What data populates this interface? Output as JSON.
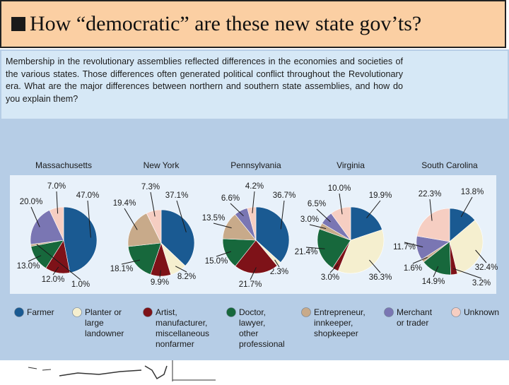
{
  "slide": {
    "title": "How “democratic” are these new state gov’ts?"
  },
  "figure": {
    "question": "Membership in the revolutionary assemblies reflected differences in the economies and societies of the various states. Those differences often generated political conflict throughout the Revolutionary era. What are the major differences between northern and southern state assemblies, and how do you explain them?"
  },
  "chart_data": {
    "type": "pie",
    "categories": [
      "Farmer",
      "Planter or large landowner",
      "Artist, manufacturer, miscellaneous nonfarmer",
      "Doctor, lawyer, other professional",
      "Entrepreneur, innkeeper, shopkeeper",
      "Merchant or trader",
      "Unknown"
    ],
    "colors": [
      "#1a5a92",
      "#f5efcf",
      "#7e1218",
      "#17683c",
      "#c8aa8a",
      "#7a76b3",
      "#f6cec2"
    ],
    "legend_lines": [
      [
        "Farmer"
      ],
      [
        "Planter or",
        "large",
        "landowner"
      ],
      [
        "Artist,",
        "manufacturer,",
        "miscellaneous",
        "nonfarmer"
      ],
      [
        "Doctor,",
        "lawyer,",
        "other",
        "professional"
      ],
      [
        "Entrepreneur,",
        "innkeeper,",
        "shopkeeper"
      ],
      [
        "Merchant",
        "or trader"
      ],
      [
        "Unknown"
      ]
    ],
    "series": [
      {
        "name": "Massachusetts",
        "values": [
          47.0,
          0,
          12.0,
          13.0,
          1.0,
          20.0,
          7.0
        ],
        "labels": [
          "47.0%",
          "",
          "12.0%",
          "13.0%",
          "1.0%",
          "20.0%",
          "7.0%"
        ]
      },
      {
        "name": "New York",
        "values": [
          37.1,
          8.2,
          9.9,
          18.1,
          19.4,
          0,
          7.3
        ],
        "labels": [
          "37.1%",
          "8.2%",
          "9.9%",
          "18.1%",
          "19.4%",
          "",
          "7.3%"
        ]
      },
      {
        "name": "Pennsylvania",
        "values": [
          36.7,
          2.3,
          21.7,
          15.0,
          13.5,
          6.6,
          4.2
        ],
        "labels": [
          "36.7%",
          "2.3%",
          "21.7%",
          "15.0%",
          "13.5%",
          "6.6%",
          "4.2%"
        ]
      },
      {
        "name": "Virginia",
        "values": [
          19.9,
          36.3,
          3.0,
          21.4,
          3.0,
          6.5,
          10.0
        ],
        "labels": [
          "19.9%",
          "36.3%",
          "3.0%",
          "21.4%",
          "3.0%",
          "6.5%",
          "10.0%"
        ]
      },
      {
        "name": "South Carolina",
        "values": [
          13.8,
          32.4,
          3.2,
          14.9,
          1.6,
          11.7,
          22.3
        ],
        "labels": [
          "13.8%",
          "32.4%",
          "3.2%",
          "14.9%",
          "1.6%",
          "11.7%",
          "22.3%"
        ]
      }
    ]
  }
}
